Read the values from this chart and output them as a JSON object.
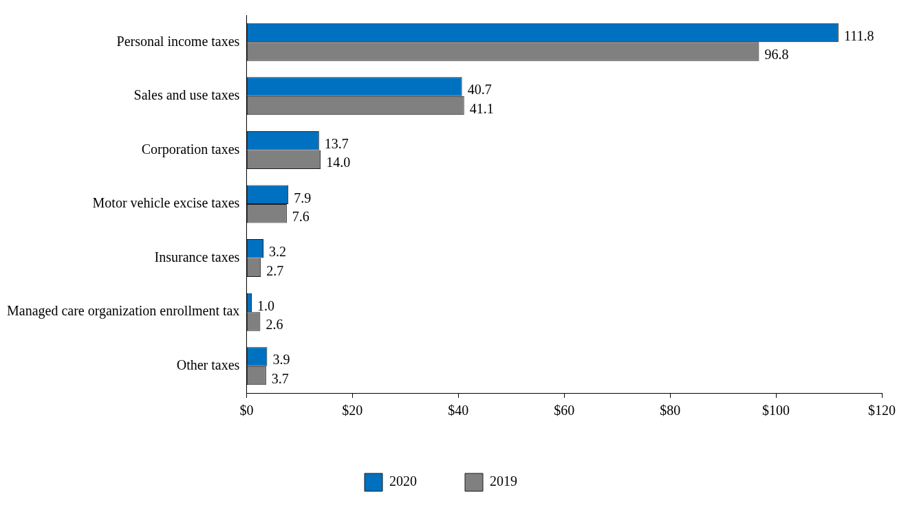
{
  "chart_data": {
    "type": "bar",
    "orientation": "horizontal",
    "categories": [
      "Personal income taxes",
      "Sales and use taxes",
      "Corporation taxes",
      "Motor vehicle excise taxes",
      "Insurance taxes",
      "Managed care organization enrollment tax",
      "Other taxes"
    ],
    "series": [
      {
        "name": "2020",
        "color": "#0070c0",
        "values": [
          111.8,
          40.7,
          13.7,
          7.9,
          3.2,
          1.0,
          3.9
        ],
        "value_labels": [
          "111.8",
          "40.7",
          "13.7",
          "7.9",
          "3.2",
          "1.0",
          "3.9"
        ]
      },
      {
        "name": "2019",
        "color": "#808080",
        "values": [
          96.8,
          41.1,
          14.0,
          7.6,
          2.7,
          2.6,
          3.7
        ],
        "value_labels": [
          "96.8",
          "41.1",
          "14.0",
          "7.6",
          "2.7",
          "2.6",
          "3.7"
        ]
      }
    ],
    "xlim": [
      0,
      120
    ],
    "xticks": [
      {
        "value": 0,
        "label": "$0"
      },
      {
        "value": 20,
        "label": "$20"
      },
      {
        "value": 40,
        "label": "$40"
      },
      {
        "value": 60,
        "label": "$60"
      },
      {
        "value": 80,
        "label": "$80"
      },
      {
        "value": 100,
        "label": "$100"
      },
      {
        "value": 120,
        "label": "$120"
      }
    ],
    "grid": false,
    "legend": "bottom"
  }
}
